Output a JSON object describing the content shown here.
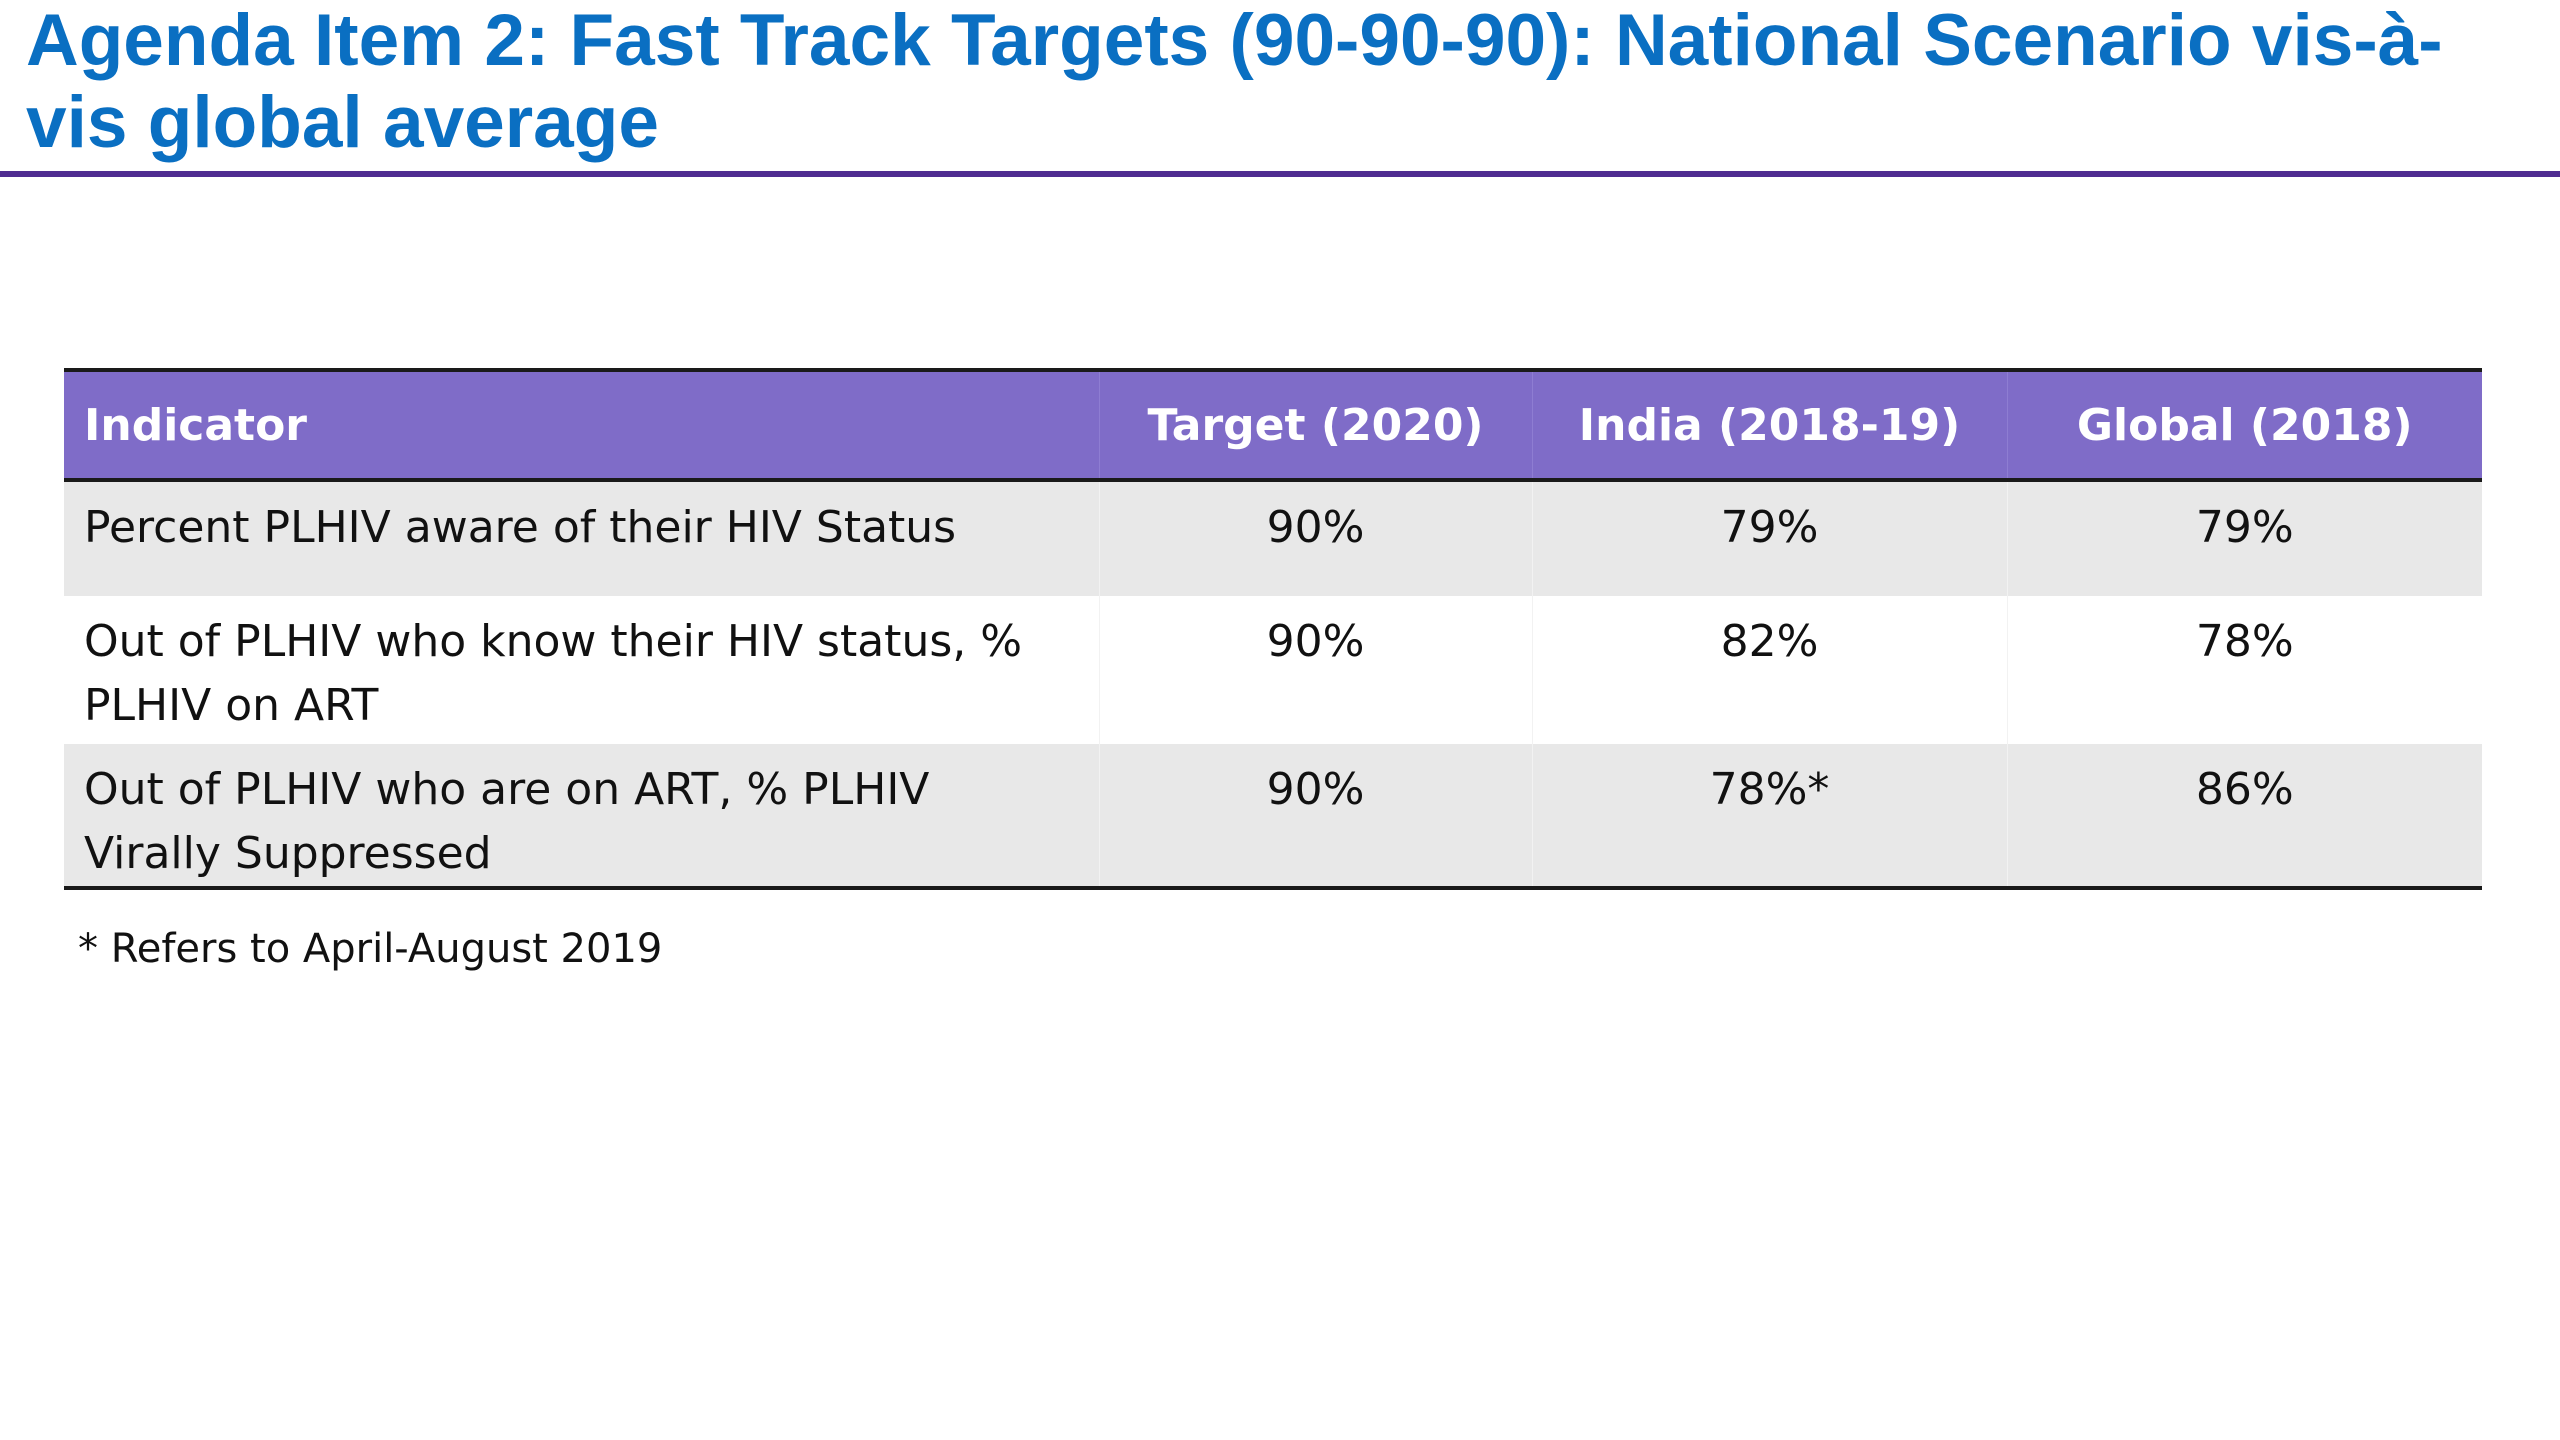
{
  "slide": {
    "title": "Agenda Item 2: Fast Track Targets (90-90-90): National Scenario vis-à-vis global average"
  },
  "table": {
    "headers": [
      "Indicator",
      "Target (2020)",
      "India (2018-19)",
      "Global (2018)"
    ],
    "rows": [
      [
        "Percent PLHIV aware of their HIV Status",
        "90%",
        "79%",
        "79%"
      ],
      [
        "Out of PLHIV who know their HIV status, % PLHIV on ART",
        "90%",
        "82%",
        "78%"
      ],
      [
        "Out of PLHIV who are on ART, % PLHIV Virally Suppressed",
        "90%",
        "78%*",
        "86%"
      ]
    ]
  },
  "footnote": "* Refers to April-August 2019",
  "colors": {
    "title": "#0a6fc2",
    "rule": "#4f2c91",
    "header_bg": "#7f6cc8",
    "row_shade": "#e8e8e8"
  }
}
